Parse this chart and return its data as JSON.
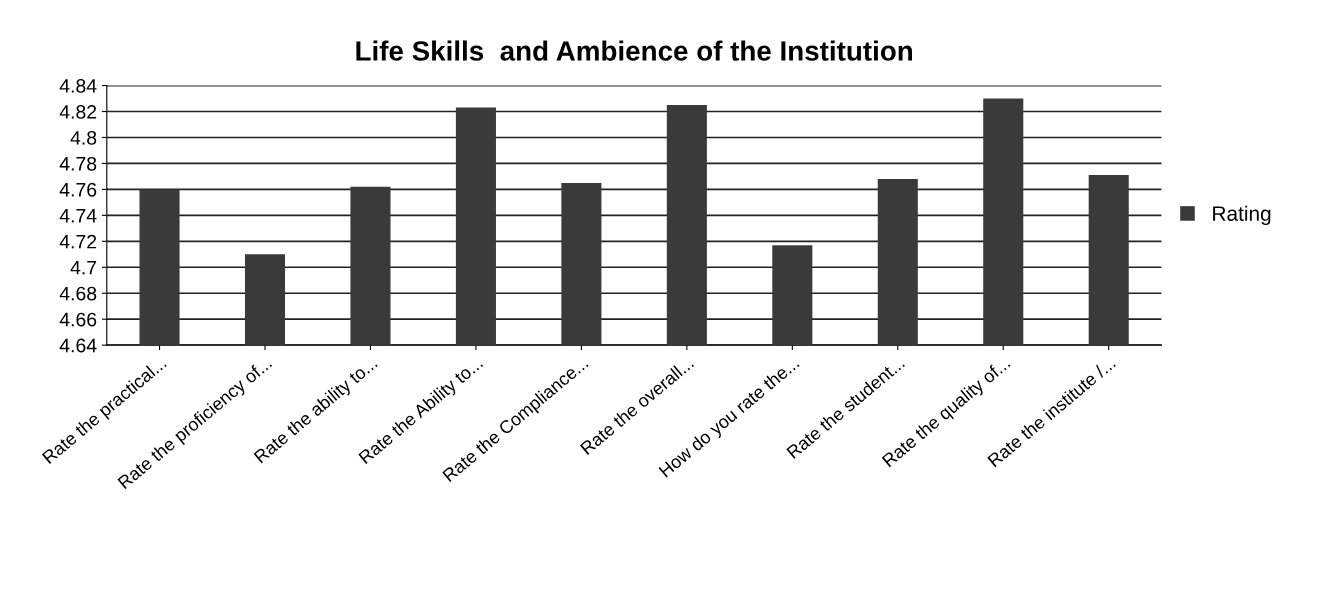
{
  "chart_data": {
    "type": "bar",
    "title": "Life Skills  and Ambience of the Institution",
    "categories": [
      "Rate the practical...",
      "Rate the proficiency of...",
      "Rate the ability to...",
      "Rate the Ability to...",
      "Rate the Compliance...",
      "Rate the overall...",
      "How do you rate the...",
      "Rate the student...",
      "Rate the quality of...",
      "Rate the institute /..."
    ],
    "series": [
      {
        "name": "Rating",
        "color": "#3a3a3a",
        "values": [
          4.76,
          4.71,
          4.762,
          4.823,
          4.765,
          4.825,
          4.717,
          4.768,
          4.83,
          4.771
        ]
      }
    ],
    "ylim": [
      4.64,
      4.84
    ],
    "yticks": [
      4.64,
      4.66,
      4.68,
      4.7,
      4.72,
      4.74,
      4.76,
      4.78,
      4.8,
      4.82,
      4.84
    ],
    "grid": "y",
    "legend": "right"
  }
}
